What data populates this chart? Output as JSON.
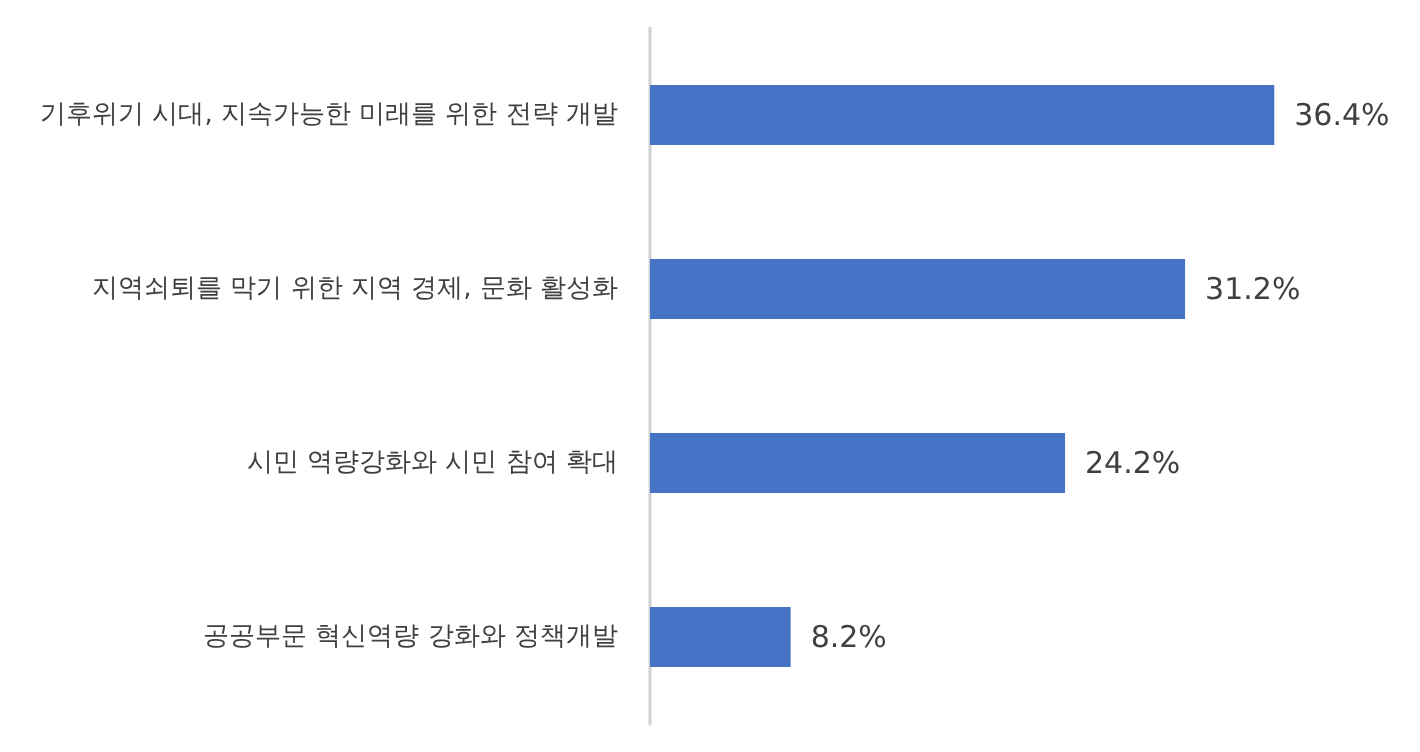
{
  "chart_data": {
    "type": "bar",
    "orientation": "horizontal",
    "categories": [
      "기후위기 시대, 지속가능한 미래를 위한 전략 개발",
      "지역쇠퇴를 막기 위한 지역 경제, 문화 활성화",
      "시민 역량강화와 시민 참여 확대",
      "공공부문 혁신역량 강화와 정책개발"
    ],
    "values": [
      36.4,
      31.2,
      24.2,
      8.2
    ],
    "value_labels": [
      "36.4%",
      "31.2%",
      "24.2%",
      "8.2%"
    ],
    "color": "#4472c4"
  }
}
